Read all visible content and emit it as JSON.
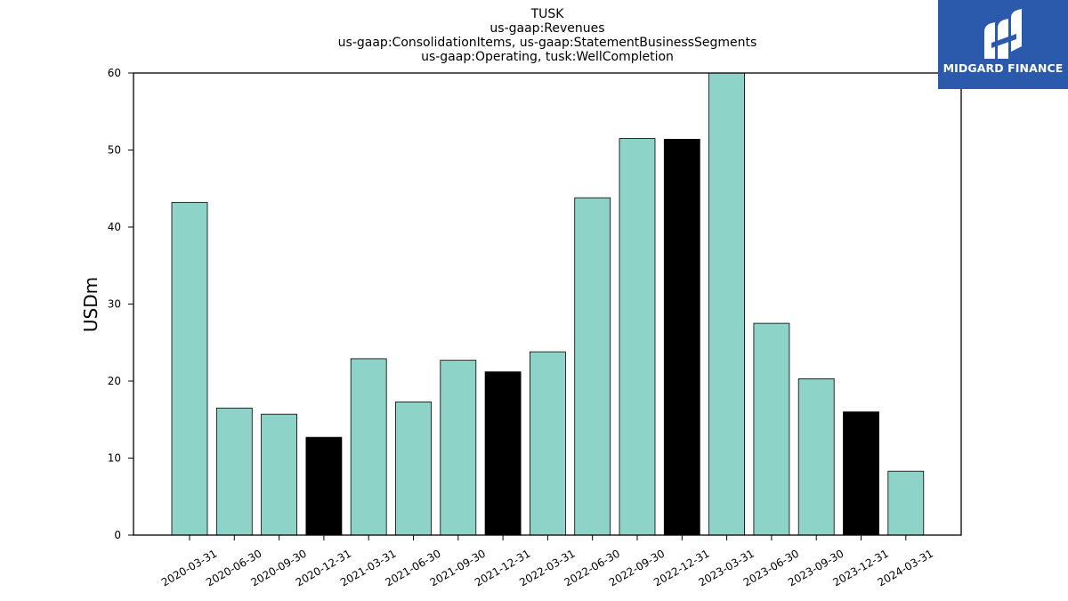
{
  "chart_data": {
    "type": "bar",
    "title_lines": [
      "TUSK",
      "us-gaap:Revenues",
      "us-gaap:ConsolidationItems, us-gaap:StatementBusinessSegments",
      "us-gaap:Operating, tusk:WellCompletion"
    ],
    "xlabel": "",
    "ylabel": "USDm",
    "ylim": [
      0,
      60
    ],
    "yticks": [
      0,
      10,
      20,
      30,
      40,
      50,
      60
    ],
    "categories": [
      "2020-03-31",
      "2020-06-30",
      "2020-09-30",
      "2020-12-31",
      "2021-03-31",
      "2021-06-30",
      "2021-09-30",
      "2021-12-31",
      "2022-03-31",
      "2022-06-30",
      "2022-09-30",
      "2022-12-31",
      "2023-03-31",
      "2023-06-30",
      "2023-09-30",
      "2023-12-31",
      "2024-03-31"
    ],
    "values": [
      43.2,
      16.5,
      15.7,
      12.7,
      22.9,
      17.3,
      22.7,
      21.2,
      23.8,
      43.8,
      51.5,
      51.4,
      60.3,
      27.5,
      20.3,
      16.0,
      8.3
    ],
    "bar_colors": [
      "#8dd3c7",
      "#8dd3c7",
      "#8dd3c7",
      "#000000",
      "#8dd3c7",
      "#8dd3c7",
      "#8dd3c7",
      "#000000",
      "#8dd3c7",
      "#8dd3c7",
      "#8dd3c7",
      "#000000",
      "#8dd3c7",
      "#8dd3c7",
      "#8dd3c7",
      "#000000",
      "#8dd3c7"
    ],
    "grid": false,
    "legend": "none"
  },
  "logo": {
    "text": "MIDGARD FINANCE",
    "background": "#2b5aad",
    "foreground": "#ffffff",
    "icon": "midgard-logo-icon"
  }
}
